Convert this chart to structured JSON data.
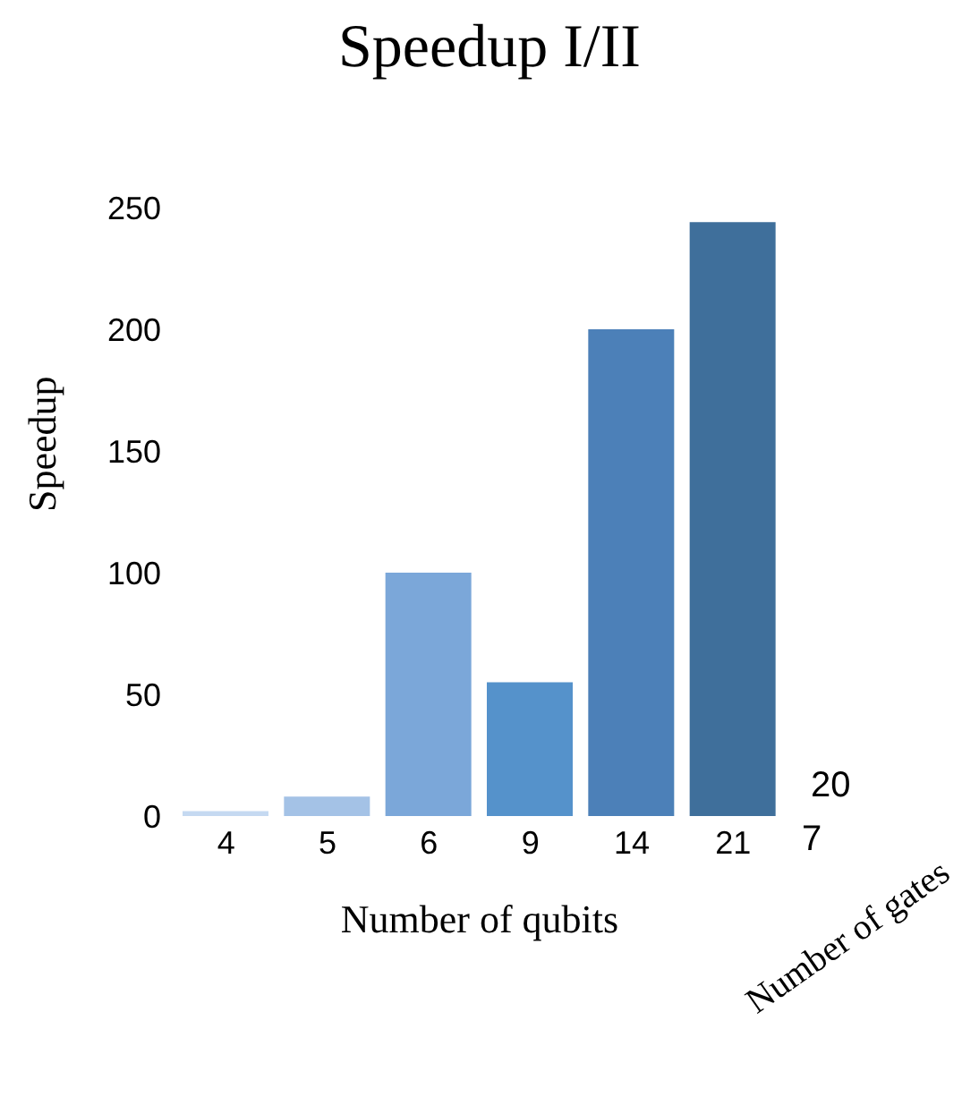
{
  "chart_data": {
    "type": "bar",
    "title": "Speedup I/II",
    "xlabel": "Number of qubits",
    "ylabel": "Speedup",
    "categories": [
      "4",
      "5",
      "6",
      "9",
      "14",
      "21"
    ],
    "values": [
      2,
      8,
      100,
      55,
      200,
      244
    ],
    "colors": [
      "#c5d9f1",
      "#a4c2e6",
      "#7ba7d9",
      "#5592cb",
      "#4c80b8",
      "#3f6f9b"
    ],
    "ylim": [
      0,
      250
    ],
    "yticks": [
      0,
      50,
      100,
      150,
      200,
      250
    ],
    "annotations": [
      "7",
      "20",
      "Number of gates"
    ]
  }
}
